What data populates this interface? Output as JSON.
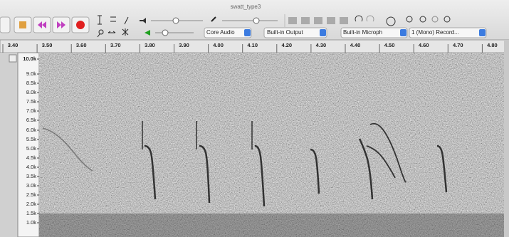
{
  "window": {
    "title": "swatt_type3"
  },
  "toolbar": {
    "devices": [
      "Core Audio",
      "Built-in Output",
      "Built-in Microph",
      "1 (Mono) Record..."
    ]
  },
  "timeline": {
    "ticks": [
      "3.40",
      "3.50",
      "3.60",
      "3.70",
      "3.80",
      "3.90",
      "4.00",
      "4.10",
      "4.20",
      "4.30",
      "4.40",
      "4.50",
      "4.60",
      "4.70",
      "4.80"
    ]
  },
  "frequency_axis": {
    "labels": [
      "10.0k",
      "9.0k",
      "8.5k",
      "8.0k",
      "7.5k",
      "7.0k",
      "6.5k",
      "6.0k",
      "5.5k",
      "5.0k",
      "4.5k",
      "4.0k",
      "3.5k",
      "3.0k",
      "2.5k",
      "2.0k",
      "1.5k",
      "1.0k"
    ]
  }
}
